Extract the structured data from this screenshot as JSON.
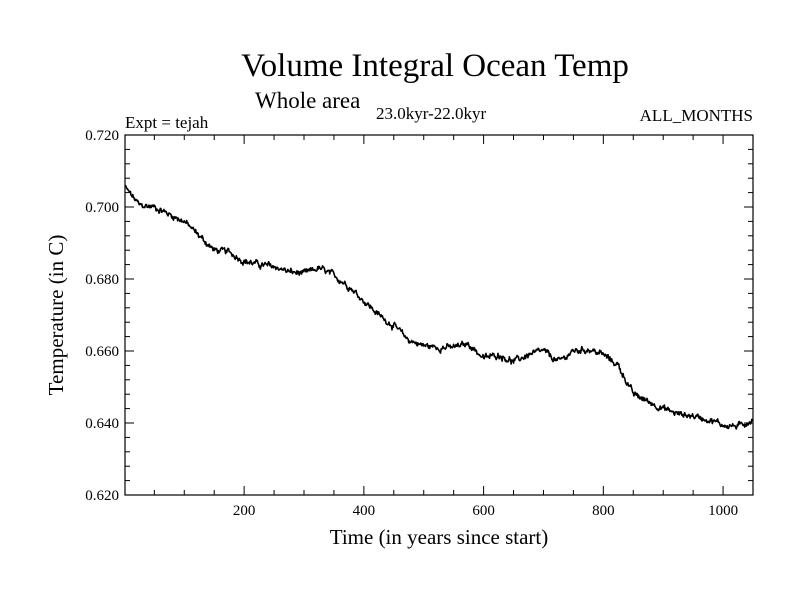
{
  "chart_data": {
    "type": "line",
    "title": "Volume Integral Ocean Temp",
    "subtitle": "Whole area",
    "period": "23.0kyr-22.0kyr",
    "left_label": "Expt = tejah",
    "right_label": "ALL_MONTHS",
    "xlabel": "Time (in years since start)",
    "ylabel": "Temperature (in C)",
    "xlim": [
      1,
      1050
    ],
    "ylim": [
      0.62,
      0.72
    ],
    "xticks": [
      200,
      400,
      600,
      800,
      1000
    ],
    "xtick_labels": [
      "200",
      "400",
      "600",
      "800",
      "1000"
    ],
    "yticks": [
      0.62,
      0.64,
      0.66,
      0.68,
      0.7,
      0.72
    ],
    "ytick_labels": [
      "0.620",
      "0.640",
      "0.660",
      "0.680",
      "0.700",
      "0.720"
    ],
    "series": [
      {
        "name": "Volume Integral Ocean Temp",
        "color": "#000000",
        "x": [
          1,
          25,
          50,
          75,
          100,
          125,
          150,
          175,
          200,
          225,
          250,
          275,
          300,
          325,
          350,
          375,
          400,
          425,
          450,
          475,
          500,
          525,
          550,
          575,
          600,
          625,
          650,
          675,
          700,
          725,
          750,
          775,
          800,
          825,
          850,
          875,
          900,
          925,
          950,
          975,
          1000,
          1025,
          1050
        ],
        "values": [
          0.7055,
          0.7005,
          0.7,
          0.698,
          0.696,
          0.692,
          0.688,
          0.6875,
          0.685,
          0.684,
          0.6835,
          0.682,
          0.6815,
          0.683,
          0.681,
          0.678,
          0.674,
          0.67,
          0.667,
          0.663,
          0.6615,
          0.661,
          0.661,
          0.662,
          0.658,
          0.659,
          0.657,
          0.659,
          0.66,
          0.657,
          0.66,
          0.6605,
          0.659,
          0.656,
          0.648,
          0.646,
          0.644,
          0.6425,
          0.642,
          0.641,
          0.6395,
          0.639,
          0.641
        ]
      }
    ]
  }
}
